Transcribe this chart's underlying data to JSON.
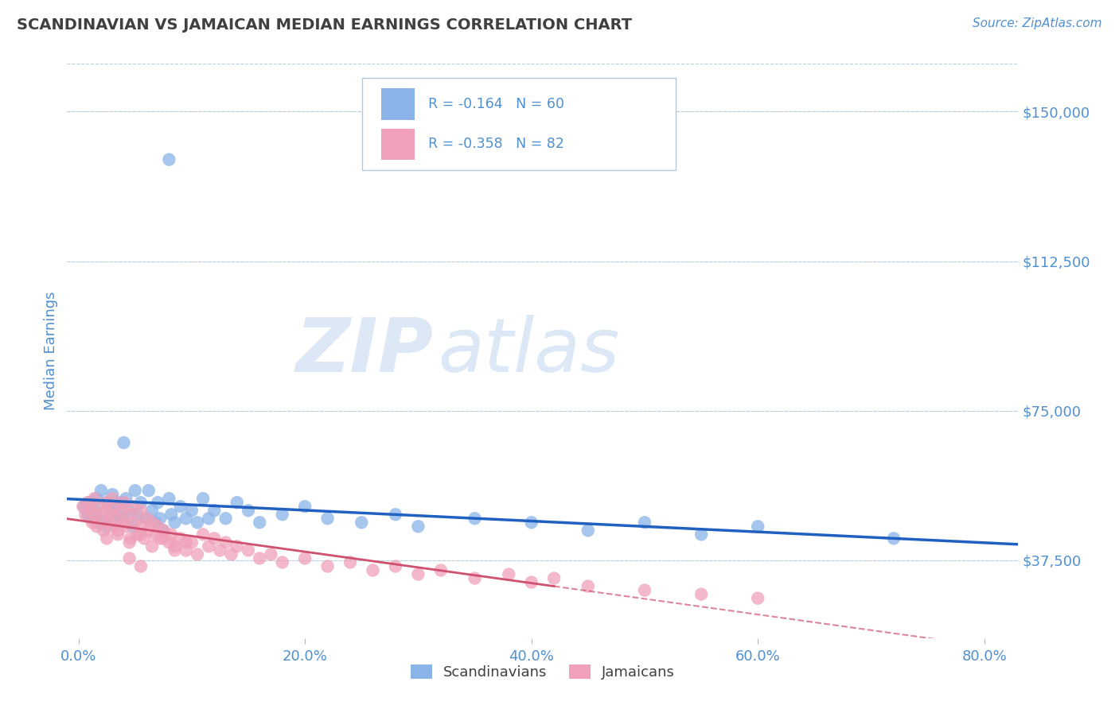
{
  "title": "SCANDINAVIAN VS JAMAICAN MEDIAN EARNINGS CORRELATION CHART",
  "source": "Source: ZipAtlas.com",
  "ylabel": "Median Earnings",
  "x_tick_labels": [
    "0.0%",
    "20.0%",
    "40.0%",
    "60.0%",
    "80.0%"
  ],
  "x_tick_values": [
    0.0,
    0.2,
    0.4,
    0.6,
    0.8
  ],
  "y_tick_labels": [
    "$37,500",
    "$75,000",
    "$112,500",
    "$150,000"
  ],
  "y_tick_values": [
    37500,
    75000,
    112500,
    150000
  ],
  "ylim": [
    18000,
    162000
  ],
  "xlim": [
    -0.01,
    0.83
  ],
  "legend_labels": [
    "Scandinavians",
    "Jamaicans"
  ],
  "legend_r_values": [
    "R = -0.164",
    "R = -0.358"
  ],
  "legend_n_values": [
    "N = 60",
    "N = 82"
  ],
  "color_scandinavian": "#8ab4e8",
  "color_jamaican": "#f0a0b8",
  "color_line_scandinavian": "#2060c0",
  "color_line_jamaican": "#d05070",
  "watermark_zip": "ZIP",
  "watermark_atlas": "atlas",
  "watermark_color": "#dce8f5",
  "background_color": "#ffffff",
  "grid_color": "#b8cfe0",
  "title_color": "#404040",
  "axis_label_color": "#5090d0",
  "scand_x": [
    0.005,
    0.008,
    0.01,
    0.012,
    0.015,
    0.016,
    0.018,
    0.02,
    0.022,
    0.025,
    0.025,
    0.028,
    0.03,
    0.032,
    0.033,
    0.035,
    0.038,
    0.04,
    0.04,
    0.042,
    0.045,
    0.048,
    0.05,
    0.052,
    0.055,
    0.06,
    0.062,
    0.065,
    0.068,
    0.07,
    0.072,
    0.075,
    0.08,
    0.082,
    0.085,
    0.09,
    0.095,
    0.1,
    0.105,
    0.11,
    0.115,
    0.12,
    0.13,
    0.14,
    0.15,
    0.16,
    0.18,
    0.2,
    0.22,
    0.25,
    0.28,
    0.3,
    0.35,
    0.4,
    0.45,
    0.5,
    0.55,
    0.6,
    0.72,
    0.08
  ],
  "scand_y": [
    51000,
    49000,
    52000,
    48000,
    50000,
    53000,
    47000,
    55000,
    48000,
    52000,
    46000,
    50000,
    54000,
    47000,
    51000,
    49000,
    52000,
    67000,
    48000,
    53000,
    50000,
    46000,
    55000,
    49000,
    52000,
    48000,
    55000,
    50000,
    47000,
    52000,
    48000,
    45000,
    53000,
    49000,
    47000,
    51000,
    48000,
    50000,
    47000,
    53000,
    48000,
    50000,
    48000,
    52000,
    50000,
    47000,
    49000,
    51000,
    48000,
    47000,
    49000,
    46000,
    48000,
    47000,
    45000,
    47000,
    44000,
    46000,
    43000,
    138000
  ],
  "jam_x": [
    0.004,
    0.006,
    0.008,
    0.01,
    0.012,
    0.014,
    0.015,
    0.016,
    0.018,
    0.02,
    0.022,
    0.024,
    0.025,
    0.026,
    0.028,
    0.03,
    0.03,
    0.032,
    0.034,
    0.035,
    0.038,
    0.04,
    0.04,
    0.042,
    0.045,
    0.046,
    0.048,
    0.05,
    0.052,
    0.055,
    0.055,
    0.058,
    0.06,
    0.062,
    0.065,
    0.068,
    0.07,
    0.072,
    0.075,
    0.08,
    0.082,
    0.085,
    0.09,
    0.095,
    0.1,
    0.105,
    0.11,
    0.115,
    0.12,
    0.125,
    0.13,
    0.135,
    0.14,
    0.15,
    0.16,
    0.17,
    0.18,
    0.2,
    0.22,
    0.24,
    0.26,
    0.28,
    0.3,
    0.32,
    0.35,
    0.38,
    0.4,
    0.42,
    0.45,
    0.5,
    0.55,
    0.6,
    0.025,
    0.035,
    0.045,
    0.055,
    0.065,
    0.075,
    0.085,
    0.095,
    0.045,
    0.055
  ],
  "jam_y": [
    51000,
    49000,
    52000,
    50000,
    47000,
    53000,
    49000,
    46000,
    51000,
    48000,
    45000,
    50000,
    52000,
    47000,
    49000,
    53000,
    46000,
    51000,
    48000,
    44000,
    50000,
    47000,
    52000,
    46000,
    49000,
    43000,
    51000,
    47000,
    44000,
    50000,
    46000,
    43000,
    48000,
    45000,
    47000,
    44000,
    46000,
    43000,
    45000,
    42000,
    44000,
    41000,
    43000,
    40000,
    42000,
    39000,
    44000,
    41000,
    43000,
    40000,
    42000,
    39000,
    41000,
    40000,
    38000,
    39000,
    37000,
    38000,
    36000,
    37000,
    35000,
    36000,
    34000,
    35000,
    33000,
    34000,
    32000,
    33000,
    31000,
    30000,
    29000,
    28000,
    43000,
    45000,
    42000,
    44000,
    41000,
    43000,
    40000,
    42000,
    38000,
    36000
  ]
}
